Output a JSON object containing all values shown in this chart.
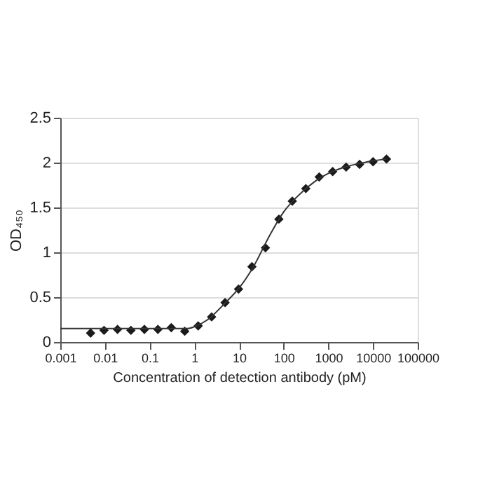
{
  "chart_data": {
    "type": "scatter",
    "xlabel": "Concentration of detection antibody (pM)",
    "ylabel": "OD₄₅₀",
    "log": "x",
    "xlim": [
      0.001,
      100000
    ],
    "xticks": [
      0.001,
      0.01,
      0.1,
      1,
      10,
      100,
      1000,
      10000,
      100000
    ],
    "ylim": [
      0,
      2.5
    ],
    "yticks": [
      0,
      0.5,
      1,
      1.5,
      2,
      2.5
    ],
    "grid": "y",
    "series": [
      {
        "marker": "diamond",
        "color": "#1a1a1a",
        "x": [
          0.00477,
          0.00954,
          0.0191,
          0.0381,
          0.0763,
          0.153,
          0.305,
          0.61,
          1.22,
          2.44,
          4.88,
          9.77,
          19.5,
          39.1,
          78.1,
          156,
          313,
          625,
          1250,
          2500,
          5000,
          10000,
          20000
        ],
        "values": [
          0.1,
          0.13,
          0.14,
          0.13,
          0.14,
          0.14,
          0.16,
          0.12,
          0.18,
          0.28,
          0.44,
          0.59,
          0.84,
          1.05,
          1.37,
          1.57,
          1.71,
          1.84,
          1.9,
          1.95,
          1.98,
          2.01,
          2.04
        ]
      },
      {
        "type": "line",
        "color": "#333333",
        "line_style": "solid",
        "x": [
          0.001,
          0.1,
          0.7,
          1,
          2,
          5,
          10,
          20,
          50,
          100,
          200,
          500,
          1000,
          2000,
          5000,
          10000,
          20000
        ],
        "values": [
          0.15,
          0.15,
          0.15,
          0.17,
          0.25,
          0.44,
          0.6,
          0.82,
          1.2,
          1.45,
          1.62,
          1.79,
          1.88,
          1.94,
          1.99,
          2.02,
          2.04
        ]
      }
    ]
  }
}
